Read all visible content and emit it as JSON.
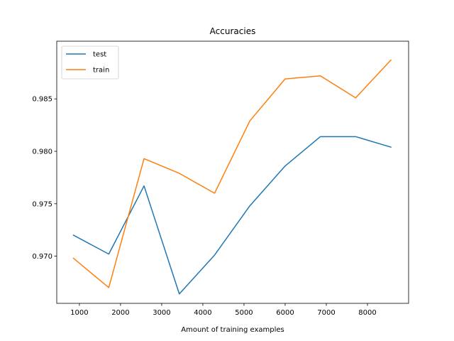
{
  "chart_data": {
    "type": "line",
    "title": "Accuracies",
    "xlabel": "Amount of training examples",
    "ylabel": "",
    "xlim": [
      450,
      9000
    ],
    "ylim": [
      0.9655,
      0.9905
    ],
    "xticks": [
      1000,
      2000,
      3000,
      4000,
      5000,
      6000,
      7000,
      8000
    ],
    "yticks": [
      0.97,
      0.975,
      0.98,
      0.985
    ],
    "ytick_labels": [
      "0.970",
      "0.975",
      "0.980",
      "0.985"
    ],
    "grid": false,
    "legend_position": "top-left",
    "x": [
      857,
      1714,
      2571,
      3428,
      4285,
      5142,
      5999,
      6856,
      7713,
      8570
    ],
    "series": [
      {
        "name": "test",
        "color": "#1f77b4",
        "values": [
          0.972,
          0.9702,
          0.9767,
          0.9664,
          0.9701,
          0.9748,
          0.9786,
          0.9814,
          0.9814,
          0.9804
        ]
      },
      {
        "name": "train",
        "color": "#ff7f0e",
        "values": [
          0.9698,
          0.967,
          0.9793,
          0.9779,
          0.976,
          0.9829,
          0.9869,
          0.9872,
          0.9851,
          0.9887
        ]
      }
    ]
  }
}
